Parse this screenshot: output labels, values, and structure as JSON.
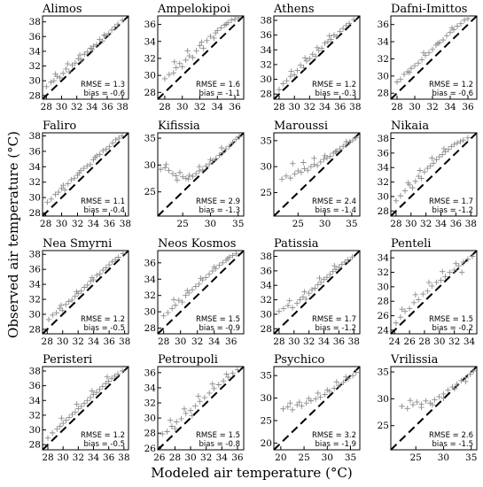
{
  "figure": {
    "xlabel": "Modeled air temperature (°C)",
    "ylabel": "Observed air temperature (°C)"
  },
  "chart_data": [
    {
      "type": "scatter",
      "title": "Alimos",
      "xlim": [
        27.5,
        38.8
      ],
      "ylim": [
        27.5,
        38.8
      ],
      "xticks": [
        28,
        30,
        32,
        34,
        36,
        38
      ],
      "yticks": [
        28,
        30,
        32,
        34,
        36,
        38
      ],
      "rmse": "1.3",
      "bias": "-0.6",
      "x": [
        28.0,
        28.6,
        29.0,
        29.4,
        29.8,
        30.2,
        30.6,
        31.0,
        31.4,
        31.8,
        32.2,
        32.6,
        33.0,
        33.4,
        33.8,
        34.2,
        34.6,
        35.0,
        35.4,
        35.8,
        36.2,
        36.6,
        37.0,
        37.4,
        38.0,
        29.2,
        30.8,
        32.4,
        34.0,
        35.6
      ],
      "y": [
        29.2,
        29.8,
        30.0,
        30.6,
        30.4,
        31.0,
        31.6,
        31.2,
        32.1,
        32.4,
        33.0,
        32.8,
        33.6,
        33.9,
        34.4,
        34.7,
        34.9,
        35.6,
        35.4,
        36.1,
        36.4,
        36.9,
        37.3,
        37.7,
        38.2,
        30.9,
        32.3,
        33.5,
        34.3,
        36.2
      ]
    },
    {
      "type": "scatter",
      "title": "Ampelokipoi",
      "xlim": [
        27.2,
        37.0
      ],
      "ylim": [
        27.2,
        37.0
      ],
      "xticks": [
        28,
        30,
        32,
        34,
        36
      ],
      "yticks": [
        28,
        30,
        32,
        34,
        36
      ],
      "rmse": "1.6",
      "bias": "-1.1",
      "x": [
        28.0,
        28.5,
        29.0,
        29.3,
        29.7,
        30.0,
        30.4,
        30.8,
        31.2,
        31.6,
        32.0,
        32.4,
        32.8,
        33.2,
        33.6,
        34.0,
        34.4,
        34.8,
        35.2,
        35.6,
        36.0,
        36.4,
        29.1,
        30.6,
        32.2,
        33.8,
        35.0
      ],
      "y": [
        29.6,
        30.1,
        30.3,
        30.9,
        31.4,
        31.0,
        31.8,
        32.3,
        32.1,
        32.9,
        33.5,
        33.2,
        34.1,
        34.6,
        34.4,
        35.3,
        35.6,
        35.9,
        36.2,
        36.5,
        36.6,
        36.8,
        31.6,
        32.9,
        33.9,
        35.0,
        36.0
      ]
    },
    {
      "type": "scatter",
      "title": "Athens",
      "xlim": [
        27.3,
        38.6
      ],
      "ylim": [
        27.3,
        38.6
      ],
      "xticks": [
        28,
        30,
        32,
        34,
        36,
        38
      ],
      "yticks": [
        28,
        30,
        32,
        34,
        36,
        38
      ],
      "rmse": "1.2",
      "bias": "-0.3",
      "x": [
        28.0,
        28.5,
        29.0,
        29.5,
        30.0,
        30.4,
        30.8,
        31.2,
        31.6,
        32.0,
        32.4,
        32.8,
        33.2,
        33.6,
        34.0,
        34.4,
        34.8,
        35.2,
        35.6,
        36.0,
        36.4,
        36.8,
        37.2,
        37.8,
        29.6,
        31.4,
        33.0,
        34.6
      ],
      "y": [
        28.6,
        29.4,
        29.8,
        30.4,
        30.6,
        31.2,
        31.9,
        31.6,
        32.5,
        32.8,
        33.4,
        33.1,
        33.9,
        34.2,
        34.9,
        35.1,
        35.4,
        36.0,
        35.8,
        36.5,
        36.9,
        37.3,
        37.6,
        38.1,
        31.1,
        32.9,
        34.3,
        35.9
      ]
    },
    {
      "type": "scatter",
      "title": "Dafni-Imittos",
      "xlim": [
        27.3,
        37.0
      ],
      "ylim": [
        27.3,
        37.0
      ],
      "xticks": [
        28,
        30,
        32,
        34,
        36
      ],
      "yticks": [
        28,
        30,
        32,
        34,
        36
      ],
      "rmse": "1.2",
      "bias": "-0.6",
      "x": [
        28.0,
        28.4,
        28.8,
        29.2,
        29.6,
        30.0,
        30.4,
        30.8,
        31.2,
        31.6,
        32.0,
        32.4,
        32.8,
        33.2,
        33.6,
        34.0,
        34.4,
        34.8,
        35.2,
        35.6,
        36.0,
        29.4,
        31.0,
        32.6,
        34.2
      ],
      "y": [
        29.3,
        29.6,
        30.2,
        30.5,
        30.9,
        31.2,
        31.5,
        31.9,
        32.4,
        32.7,
        33.1,
        33.6,
        33.9,
        34.2,
        34.7,
        35.1,
        35.4,
        35.8,
        36.1,
        36.5,
        36.7,
        30.4,
        32.7,
        33.8,
        35.6
      ]
    },
    {
      "type": "scatter",
      "title": "Faliro",
      "xlim": [
        27.6,
        38.4
      ],
      "ylim": [
        27.6,
        38.4
      ],
      "xticks": [
        28,
        30,
        32,
        34,
        36,
        38
      ],
      "yticks": [
        28,
        30,
        32,
        34,
        36,
        38
      ],
      "rmse": "1.1",
      "bias": "-0.4",
      "x": [
        28.2,
        28.7,
        29.2,
        29.6,
        30.0,
        30.4,
        30.8,
        31.2,
        31.6,
        32.0,
        32.4,
        32.8,
        33.2,
        33.6,
        34.0,
        34.4,
        34.8,
        35.2,
        35.6,
        36.0,
        36.4,
        36.8,
        37.2,
        37.6,
        30.2,
        32.2,
        34.2
      ],
      "y": [
        29.4,
        29.8,
        30.4,
        30.7,
        31.2,
        31.0,
        31.8,
        32.3,
        32.5,
        32.9,
        33.5,
        33.8,
        34.1,
        34.3,
        34.9,
        35.4,
        35.6,
        36.1,
        36.3,
        36.6,
        37.1,
        37.5,
        37.7,
        38.0,
        31.6,
        33.2,
        35.2
      ]
    },
    {
      "type": "scatter",
      "title": "Kifissia",
      "xlim": [
        20.5,
        36.0
      ],
      "ylim": [
        20.5,
        36.0
      ],
      "xticks": [
        25,
        30,
        35
      ],
      "yticks": [
        25,
        30,
        35
      ],
      "rmse": "2.9",
      "bias": "-1.3",
      "x": [
        21.0,
        21.8,
        22.5,
        23.2,
        23.8,
        24.5,
        25.0,
        25.6,
        26.2,
        26.8,
        27.4,
        28.0,
        28.6,
        29.2,
        29.8,
        30.4,
        31.0,
        31.6,
        32.2,
        32.8,
        33.4,
        34.0,
        34.6,
        35.2,
        22.0,
        24.0,
        26.0,
        28.0,
        30.0,
        32.0
      ],
      "y": [
        29.2,
        29.5,
        29.0,
        28.4,
        28.0,
        28.6,
        27.8,
        27.5,
        28.1,
        27.9,
        28.4,
        28.9,
        29.1,
        29.8,
        30.2,
        30.8,
        31.2,
        31.8,
        32.3,
        33.0,
        33.5,
        34.2,
        34.8,
        35.3,
        30.1,
        27.2,
        27.4,
        29.7,
        31.0,
        33.2
      ]
    },
    {
      "type": "scatter",
      "title": "Maroussi",
      "xlim": [
        20.5,
        36.5
      ],
      "ylim": [
        20.5,
        36.5
      ],
      "xticks": [
        25,
        30,
        35
      ],
      "yticks": [
        25,
        30,
        35
      ],
      "rmse": "2.4",
      "bias": "-1.4",
      "x": [
        22.0,
        22.8,
        23.6,
        24.4,
        25.0,
        25.6,
        26.2,
        26.8,
        27.4,
        28.0,
        28.6,
        29.2,
        29.8,
        30.4,
        31.0,
        31.6,
        32.2,
        32.8,
        33.4,
        34.0,
        34.6,
        35.2,
        35.8,
        24.0,
        26.0,
        28.0,
        30.0,
        32.0,
        34.0
      ],
      "y": [
        27.6,
        28.2,
        27.8,
        28.6,
        29.2,
        28.9,
        29.6,
        29.3,
        30.0,
        30.4,
        30.2,
        30.9,
        31.4,
        31.7,
        32.0,
        32.6,
        33.0,
        33.4,
        33.9,
        34.3,
        34.7,
        35.1,
        35.6,
        30.6,
        30.8,
        31.6,
        32.1,
        32.9,
        34.8
      ]
    },
    {
      "type": "scatter",
      "title": "Nikaia",
      "xlim": [
        27.3,
        38.8
      ],
      "ylim": [
        27.3,
        38.8
      ],
      "xticks": [
        28,
        30,
        32,
        34,
        36,
        38
      ],
      "yticks": [
        28,
        30,
        32,
        34,
        36,
        38
      ],
      "rmse": "1.7",
      "bias": "-1.2",
      "x": [
        28.0,
        28.6,
        29.2,
        29.8,
        30.2,
        30.6,
        31.0,
        31.4,
        31.8,
        32.2,
        32.6,
        33.0,
        33.4,
        33.8,
        34.2,
        34.6,
        35.0,
        35.4,
        35.8,
        36.2,
        36.6,
        37.0,
        37.6,
        29.6,
        31.2,
        32.8,
        34.4
      ],
      "y": [
        29.4,
        30.1,
        30.8,
        31.6,
        31.2,
        32.1,
        32.8,
        32.5,
        33.4,
        33.9,
        34.2,
        34.6,
        35.1,
        35.5,
        35.8,
        36.2,
        36.5,
        36.9,
        37.2,
        37.4,
        37.6,
        37.8,
        38.1,
        31.9,
        33.6,
        35.3,
        36.6
      ]
    },
    {
      "type": "scatter",
      "title": "Nea Smyrni",
      "xlim": [
        27.4,
        38.5
      ],
      "ylim": [
        27.4,
        38.5
      ],
      "xticks": [
        28,
        30,
        32,
        34,
        36,
        38
      ],
      "yticks": [
        28,
        30,
        32,
        34,
        36,
        38
      ],
      "rmse": "1.2",
      "bias": "-0.5",
      "x": [
        28.2,
        28.7,
        29.2,
        29.6,
        30.0,
        30.4,
        30.8,
        31.2,
        31.6,
        32.0,
        32.4,
        32.8,
        33.2,
        33.6,
        34.0,
        34.4,
        34.8,
        35.2,
        35.6,
        36.0,
        36.4,
        36.8,
        37.2,
        37.8,
        29.8,
        31.8,
        33.8
      ],
      "y": [
        29.3,
        29.9,
        30.2,
        30.8,
        30.5,
        31.3,
        31.7,
        31.9,
        32.4,
        32.8,
        33.1,
        33.6,
        33.9,
        34.4,
        34.6,
        35.2,
        35.4,
        35.9,
        36.2,
        36.6,
        37.0,
        37.3,
        37.6,
        38.1,
        31.2,
        33.0,
        34.9
      ]
    },
    {
      "type": "scatter",
      "title": "Neos Kosmos",
      "xlim": [
        27.3,
        37.5
      ],
      "ylim": [
        27.3,
        37.5
      ],
      "xticks": [
        28,
        30,
        32,
        34,
        36
      ],
      "yticks": [
        28,
        30,
        32,
        34,
        36
      ],
      "rmse": "1.5",
      "bias": "-0.9",
      "x": [
        28.0,
        28.5,
        29.0,
        29.4,
        29.8,
        30.2,
        30.6,
        31.0,
        31.4,
        31.8,
        32.2,
        32.6,
        33.0,
        33.4,
        33.8,
        34.2,
        34.6,
        35.0,
        35.4,
        35.8,
        36.2,
        36.6,
        29.2,
        30.8,
        32.4,
        34.0,
        35.6
      ],
      "y": [
        29.5,
        29.9,
        30.4,
        30.8,
        31.4,
        31.2,
        32.0,
        32.3,
        32.7,
        33.1,
        33.4,
        33.9,
        34.2,
        34.6,
        35.0,
        35.3,
        35.7,
        36.0,
        36.3,
        36.7,
        36.9,
        37.1,
        31.5,
        32.6,
        34.1,
        35.5,
        36.5
      ]
    },
    {
      "type": "scatter",
      "title": "Patissia",
      "xlim": [
        27.3,
        38.8
      ],
      "ylim": [
        27.3,
        38.8
      ],
      "xticks": [
        28,
        30,
        32,
        34,
        36,
        38
      ],
      "yticks": [
        28,
        30,
        32,
        34,
        36,
        38
      ],
      "rmse": "1.7",
      "bias": "-1.2",
      "x": [
        28.0,
        28.6,
        29.2,
        29.8,
        30.4,
        30.8,
        31.2,
        31.6,
        32.0,
        32.4,
        32.8,
        33.2,
        33.6,
        34.0,
        34.4,
        34.8,
        35.2,
        35.6,
        36.0,
        36.4,
        36.8,
        37.2,
        37.8,
        29.4,
        31.4,
        33.4,
        35.4
      ],
      "y": [
        30.4,
        30.8,
        31.2,
        30.9,
        31.5,
        32.0,
        32.4,
        32.1,
        32.9,
        33.4,
        33.6,
        34.1,
        34.4,
        34.8,
        35.1,
        35.5,
        35.9,
        36.2,
        36.5,
        36.9,
        37.2,
        37.5,
        37.9,
        31.9,
        33.1,
        35.0,
        36.7
      ]
    },
    {
      "type": "scatter",
      "title": "Penteli",
      "xlim": [
        23.5,
        35.0
      ],
      "ylim": [
        23.5,
        35.0
      ],
      "xticks": [
        24,
        26,
        28,
        30,
        32,
        34
      ],
      "yticks": [
        24,
        26,
        28,
        30,
        32,
        34
      ],
      "rmse": "1.5",
      "bias": "-0.2",
      "x": [
        24.2,
        24.8,
        25.4,
        26.0,
        26.6,
        27.2,
        27.8,
        28.4,
        29.0,
        29.6,
        30.2,
        30.8,
        31.4,
        32.0,
        32.6,
        33.2,
        33.8,
        34.4,
        25.0,
        26.8,
        28.6,
        30.4,
        32.2,
        33.0
      ],
      "y": [
        25.0,
        25.8,
        26.6,
        27.0,
        27.8,
        28.2,
        29.0,
        29.4,
        30.1,
        30.6,
        30.9,
        31.4,
        32.0,
        32.3,
        32.9,
        33.4,
        33.8,
        34.2,
        26.9,
        28.9,
        30.6,
        32.1,
        33.2,
        32.0
      ]
    },
    {
      "type": "scatter",
      "title": "Peristeri",
      "xlim": [
        27.3,
        38.6
      ],
      "ylim": [
        27.3,
        38.6
      ],
      "xticks": [
        28,
        30,
        32,
        34,
        36,
        38
      ],
      "yticks": [
        28,
        30,
        32,
        34,
        36,
        38
      ],
      "rmse": "1.2",
      "bias": "-0.5",
      "x": [
        28.0,
        28.6,
        29.2,
        29.6,
        30.0,
        30.4,
        30.8,
        31.2,
        31.6,
        32.0,
        32.4,
        32.8,
        33.2,
        33.6,
        34.0,
        34.4,
        34.8,
        35.2,
        35.6,
        36.0,
        36.4,
        36.8,
        37.2,
        37.8,
        29.8,
        31.8,
        33.8,
        35.8
      ],
      "y": [
        28.9,
        29.6,
        30.1,
        30.5,
        30.9,
        31.3,
        31.7,
        32.1,
        32.4,
        32.9,
        33.2,
        33.6,
        34.0,
        34.4,
        34.8,
        35.1,
        35.5,
        35.9,
        36.3,
        36.6,
        37.0,
        37.3,
        37.6,
        38.0,
        31.6,
        33.5,
        35.3,
        37.2
      ]
    },
    {
      "type": "scatter",
      "title": "Petroupoli",
      "xlim": [
        25.8,
        36.8
      ],
      "ylim": [
        25.8,
        36.8
      ],
      "xticks": [
        26,
        28,
        30,
        32,
        34,
        36
      ],
      "yticks": [
        26,
        28,
        30,
        32,
        34,
        36
      ],
      "rmse": "1.5",
      "bias": "-0.8",
      "x": [
        26.4,
        27.0,
        27.6,
        28.2,
        28.8,
        29.4,
        30.0,
        30.6,
        31.2,
        31.8,
        32.4,
        33.0,
        33.6,
        34.2,
        34.8,
        35.4,
        36.0,
        27.4,
        29.2,
        31.0,
        32.8,
        34.6,
        28.0,
        30.2
      ],
      "y": [
        27.9,
        28.2,
        28.9,
        29.5,
        29.9,
        30.6,
        31.0,
        31.6,
        32.2,
        32.7,
        33.3,
        33.9,
        34.4,
        34.9,
        35.4,
        35.9,
        36.4,
        29.7,
        31.2,
        32.9,
        34.5,
        35.8,
        28.6,
        30.3
      ]
    },
    {
      "type": "scatter",
      "title": "Psychico",
      "xlim": [
        18.5,
        37.0
      ],
      "ylim": [
        18.5,
        37.0
      ],
      "xticks": [
        20,
        25,
        30,
        35
      ],
      "yticks": [
        20,
        25,
        30,
        35
      ],
      "rmse": "3.2",
      "bias": "-1.9",
      "x": [
        20.5,
        21.5,
        22.5,
        23.5,
        24.5,
        25.5,
        26.5,
        27.5,
        28.5,
        29.5,
        30.5,
        31.5,
        32.5,
        33.5,
        34.5,
        35.5,
        36.2,
        22.0,
        24.0,
        26.0,
        28.0,
        30.0,
        32.0,
        34.0
      ],
      "y": [
        27.6,
        28.0,
        27.4,
        28.5,
        28.2,
        28.9,
        29.4,
        29.8,
        30.2,
        30.8,
        31.5,
        32.2,
        32.8,
        33.5,
        34.3,
        35.0,
        35.7,
        28.9,
        29.1,
        29.9,
        31.1,
        31.8,
        33.6,
        34.7
      ]
    },
    {
      "type": "scatter",
      "title": "Vrilissia",
      "xlim": [
        20.5,
        36.0
      ],
      "ylim": [
        20.5,
        36.0
      ],
      "xticks": [
        25,
        30,
        35
      ],
      "yticks": [
        25,
        30,
        35
      ],
      "rmse": "2.6",
      "bias": "-1.5",
      "x": [
        22.5,
        23.5,
        24.5,
        25.2,
        26.0,
        26.8,
        27.6,
        28.4,
        29.2,
        30.0,
        30.8,
        31.6,
        32.4,
        33.2,
        34.0,
        34.8,
        35.4,
        24.0,
        26.0,
        28.0,
        30.0,
        32.0,
        34.0
      ],
      "y": [
        28.6,
        28.2,
        28.9,
        29.4,
        29.0,
        29.6,
        29.2,
        29.8,
        30.4,
        30.9,
        31.6,
        32.2,
        32.7,
        33.4,
        33.9,
        34.6,
        35.2,
        29.7,
        28.4,
        28.9,
        30.1,
        31.9,
        33.2
      ]
    }
  ]
}
